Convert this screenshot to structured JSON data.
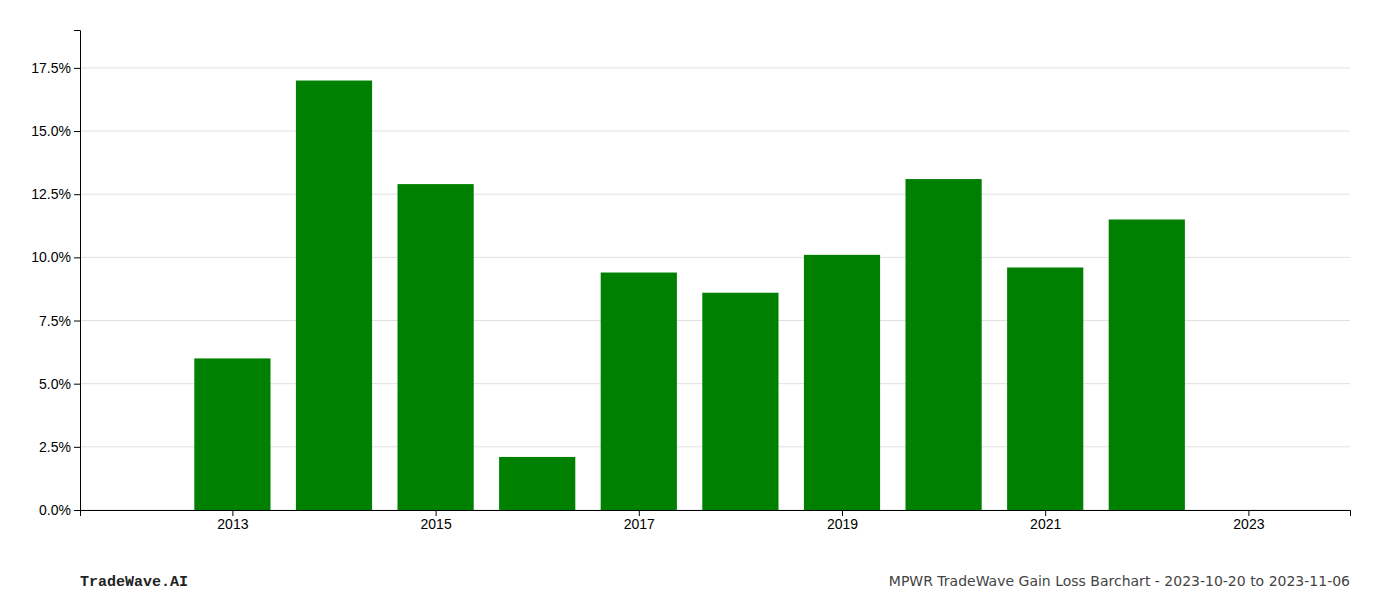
{
  "chart_data": {
    "type": "bar",
    "x": [
      2013,
      2014,
      2015,
      2016,
      2017,
      2018,
      2019,
      2020,
      2021,
      2022
    ],
    "values": [
      0.06,
      0.17,
      0.129,
      0.021,
      0.094,
      0.086,
      0.101,
      0.131,
      0.096,
      0.115
    ],
    "color": "#008000",
    "xlim": [
      2011.5,
      2024.0
    ],
    "xticks": [
      2013,
      2015,
      2017,
      2019,
      2021,
      2023
    ],
    "ylim": [
      0,
      0.19
    ],
    "yticks": [
      {
        "value": 0.0,
        "label": "0.0%"
      },
      {
        "value": 0.025,
        "label": "2.5%"
      },
      {
        "value": 0.05,
        "label": "5.0%"
      },
      {
        "value": 0.075,
        "label": "7.5%"
      },
      {
        "value": 0.1,
        "label": "10.0%"
      },
      {
        "value": 0.125,
        "label": "12.5%"
      },
      {
        "value": 0.15,
        "label": "15.0%"
      },
      {
        "value": 0.175,
        "label": "17.5%"
      }
    ],
    "grid": true,
    "annotations": [
      "TradeWave.AI",
      "MPWR TradeWave Gain Loss Barchart - 2023-10-20 to 2023-11-06"
    ]
  }
}
